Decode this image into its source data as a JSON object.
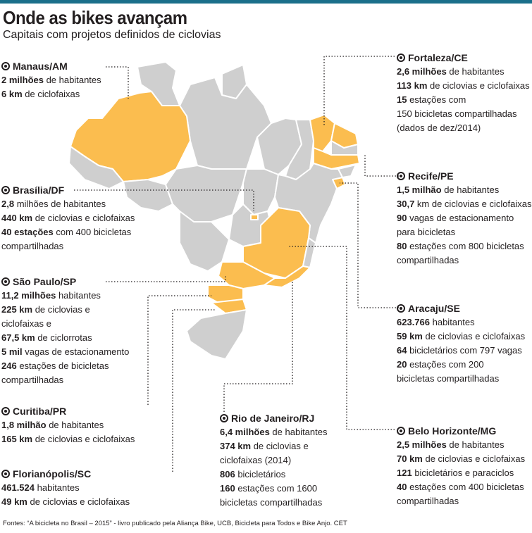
{
  "title": "Onde as bikes avançam",
  "subtitle": "Capitais com projetos definidos de ciclovias",
  "colors": {
    "highlight": "#fbbd4f",
    "state": "#cfcfcf",
    "border": "#ffffff",
    "rule": "#1b6f8a"
  },
  "cities": [
    {
      "id": "manaus",
      "name": "Manaus/AM",
      "lines": [
        [
          {
            "b": "2 milhões"
          },
          {
            "t": " de habitantes"
          }
        ],
        [
          {
            "b": "6 km"
          },
          {
            "t": " de ciclofaixas"
          }
        ]
      ]
    },
    {
      "id": "brasilia",
      "name": "Brasília/DF",
      "lines": [
        [
          {
            "b": "2,8"
          },
          {
            "t": " milhões de habitantes"
          }
        ],
        [
          {
            "b": "440 km"
          },
          {
            "t": " de ciclovias e ciclofaixas"
          }
        ],
        [
          {
            "b": "40 estações"
          },
          {
            "t": " com 400 bicicletas"
          }
        ],
        [
          {
            "t": "compartilhadas"
          }
        ]
      ]
    },
    {
      "id": "saopaulo",
      "name": "São Paulo/SP",
      "lines": [
        [
          {
            "b": "11,2 milhões"
          },
          {
            "t": " habitantes"
          }
        ],
        [
          {
            "b": "225 km"
          },
          {
            "t": " de ciclovias e"
          }
        ],
        [
          {
            "t": "ciclofaixas e"
          }
        ],
        [
          {
            "b": "67,5 km"
          },
          {
            "t": " de ciclorrotas"
          }
        ],
        [
          {
            "b": "5 mil"
          },
          {
            "t": " vagas de estacionamento"
          }
        ],
        [
          {
            "b": "246"
          },
          {
            "t": " estações de bicicletas"
          }
        ],
        [
          {
            "t": "compartilhadas"
          }
        ]
      ]
    },
    {
      "id": "curitiba",
      "name": "Curitiba/PR",
      "lines": [
        [
          {
            "b": "1,8 milhão"
          },
          {
            "t": " de habitantes"
          }
        ],
        [
          {
            "b": "165 km"
          },
          {
            "t": " de ciclovias e ciclofaixas"
          }
        ]
      ]
    },
    {
      "id": "florianopolis",
      "name": "Florianópolis/SC",
      "lines": [
        [
          {
            "b": "461.524"
          },
          {
            "t": " habitantes"
          }
        ],
        [
          {
            "b": "49 km"
          },
          {
            "t": " de ciclovias e ciclofaixas"
          }
        ]
      ]
    },
    {
      "id": "riodejaneiro",
      "name": "Rio de Janeiro/RJ",
      "lines": [
        [
          {
            "b": "6,4 milhões"
          },
          {
            "t": " de habitantes"
          }
        ],
        [
          {
            "b": "374 km"
          },
          {
            "t": " de ciclovias e"
          }
        ],
        [
          {
            "t": "ciclofaixas (2014)"
          }
        ],
        [
          {
            "b": "806"
          },
          {
            "t": " bicicletários"
          }
        ],
        [
          {
            "b": "160"
          },
          {
            "t": " estações com 1600"
          }
        ],
        [
          {
            "t": "bicicletas compartilhadas"
          }
        ]
      ]
    },
    {
      "id": "fortaleza",
      "name": "Fortaleza/CE",
      "lines": [
        [
          {
            "b": "2,6 milhões"
          },
          {
            "t": " de habitantes"
          }
        ],
        [
          {
            "b": "113 km"
          },
          {
            "t": " de ciclovias e ciclofaixas"
          }
        ],
        [
          {
            "b": "15"
          },
          {
            "t": " estações com"
          }
        ],
        [
          {
            "t": "150 bicicletas compartilhadas"
          }
        ],
        [
          {
            "t": "(dados de dez/2014)"
          }
        ]
      ]
    },
    {
      "id": "recife",
      "name": "Recife/PE",
      "lines": [
        [
          {
            "b": "1,5 milhão"
          },
          {
            "t": " de habitantes"
          }
        ],
        [
          {
            "b": "30,7"
          },
          {
            "t": " km de ciclovias e ciclofaixas"
          }
        ],
        [
          {
            "b": "90"
          },
          {
            "t": " vagas de estacionamento"
          }
        ],
        [
          {
            "t": "para bicicletas"
          }
        ],
        [
          {
            "b": "80"
          },
          {
            "t": " estações com 800 bicicletas"
          }
        ],
        [
          {
            "t": "compartilhadas"
          }
        ]
      ]
    },
    {
      "id": "aracaju",
      "name": "Aracaju/SE",
      "lines": [
        [
          {
            "b": "623.766"
          },
          {
            "t": " habitantes"
          }
        ],
        [
          {
            "b": "59 km"
          },
          {
            "t": " de ciclovias e ciclofaixas"
          }
        ],
        [
          {
            "b": "64"
          },
          {
            "t": " bicicletários com 797 vagas"
          }
        ],
        [
          {
            "b": "20"
          },
          {
            "t": " estações com 200"
          }
        ],
        [
          {
            "t": "bicicletas compartilhadas"
          }
        ]
      ]
    },
    {
      "id": "belohorizonte",
      "name": "Belo Horizonte/MG",
      "lines": [
        [
          {
            "b": "2,5 milhões"
          },
          {
            "t": " de habitantes"
          }
        ],
        [
          {
            "b": "70 km"
          },
          {
            "t": " de ciclovias e ciclofaixas"
          }
        ],
        [
          {
            "b": "121"
          },
          {
            "t": " bicicletários e paraciclos"
          }
        ],
        [
          {
            "b": "40"
          },
          {
            "t": " estações com 400 bicicletas"
          }
        ],
        [
          {
            "t": "compartilhadas"
          }
        ]
      ]
    }
  ],
  "footer": "Fontes: “A bicicleta no Brasil – 2015” - livro publicado pela Aliança Bike, UCB, Bicicleta para Todos e Bike Anjo. CET"
}
